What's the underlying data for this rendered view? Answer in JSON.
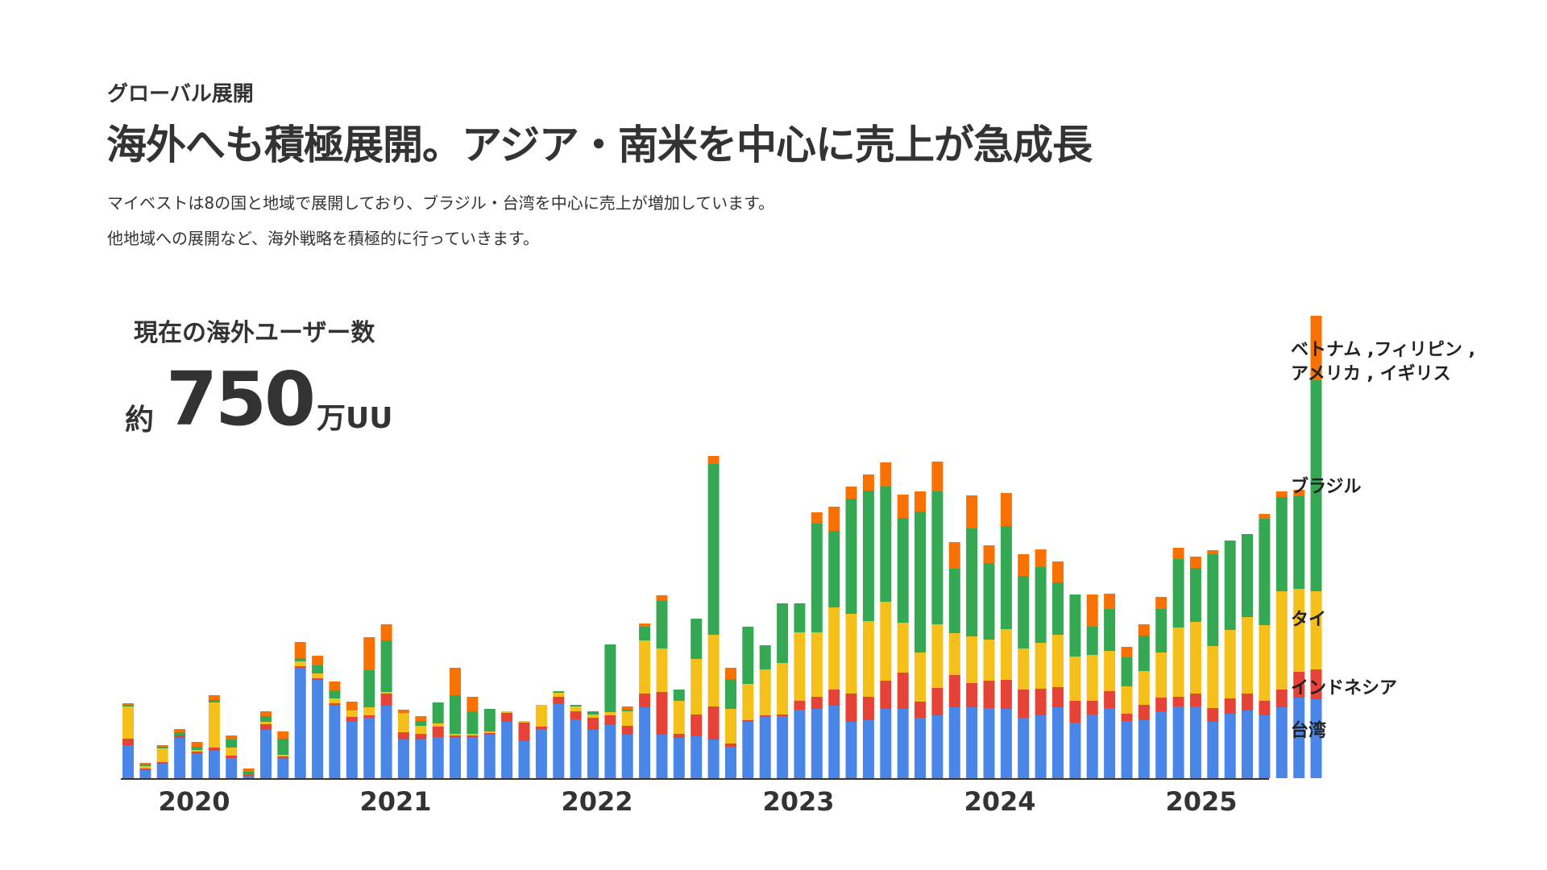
{
  "header": {
    "kicker": "グローバル展開",
    "title": "海外へも積極展開。アジア・南米を中心に売上が急成長",
    "desc_line1": "マイベストは8の国と地域で展開しており、ブラジル・台湾を中心に売上が増加しています。",
    "desc_line2": "他地域への展開など、海外戦略を積極的に行っていきます。"
  },
  "kpi": {
    "label": "現在の海外ユーザー数",
    "prefix": "約",
    "value": "750",
    "unit": "万UU"
  },
  "colors": {
    "台湾": "#4a86e8",
    "インドネシア": "#e64236",
    "タイ": "#f6c01a",
    "ブラジル": "#34a853",
    "other": "#fa7103",
    "axis": "#333333"
  },
  "chart_data": {
    "type": "bar",
    "stacked": true,
    "xlabel": "",
    "ylabel": "",
    "year_labels": [
      "2020",
      "2021",
      "2022",
      "2023",
      "2024",
      "2025"
    ],
    "series": [
      {
        "name": "台湾",
        "values": [
          41,
          10,
          18,
          50,
          31,
          34,
          25,
          3,
          60,
          25,
          137,
          122,
          91,
          70,
          75,
          90,
          48,
          48,
          51,
          51,
          51,
          54,
          70,
          46,
          61,
          92,
          73,
          60,
          66,
          54,
          88,
          54,
          50,
          52,
          48,
          39,
          70,
          76,
          77,
          85,
          86,
          90,
          70,
          72,
          86,
          86,
          75,
          78,
          88,
          88,
          87,
          86,
          75,
          78,
          88,
          69,
          79,
          87,
          71,
          72,
          83,
          89,
          89,
          70,
          80,
          84,
          78,
          88,
          100,
          98
        ]
      },
      {
        "name": "インドネシア",
        "values": [
          8,
          2,
          2,
          3,
          2,
          4,
          3,
          1,
          7,
          2,
          2,
          2,
          2,
          6,
          3,
          15,
          9,
          7,
          13,
          2,
          2,
          2,
          11,
          23,
          3,
          9,
          10,
          15,
          12,
          11,
          17,
          53,
          5,
          27,
          41,
          4,
          2,
          2,
          2,
          11,
          15,
          20,
          35,
          29,
          35,
          45,
          20,
          34,
          40,
          30,
          34,
          36,
          35,
          33,
          25,
          27,
          17,
          21,
          9,
          19,
          17,
          12,
          16,
          17,
          19,
          21,
          18,
          22,
          32,
          37
        ]
      },
      {
        "name": "タイ",
        "values": [
          40,
          3,
          17,
          0,
          2,
          56,
          10,
          0,
          3,
          2,
          6,
          6,
          6,
          8,
          10,
          2,
          24,
          10,
          4,
          2,
          2,
          2,
          2,
          2,
          27,
          5,
          6,
          4,
          4,
          18,
          66,
          54,
          41,
          69,
          89,
          43,
          45,
          57,
          64,
          85,
          80,
          102,
          99,
          94,
          98,
          62,
          61,
          79,
          52,
          58,
          51,
          63,
          51,
          57,
          65,
          55,
          57,
          50,
          34,
          42,
          56,
          86,
          89,
          77,
          85,
          95,
          94,
          122,
          103,
          97
        ]
      },
      {
        "name": "ブラジル",
        "values": [
          2,
          2,
          2,
          4,
          4,
          3,
          10,
          4,
          7,
          20,
          4,
          10,
          10,
          0,
          46,
          64,
          0,
          6,
          26,
          48,
          28,
          28,
          0,
          0,
          0,
          2,
          2,
          4,
          84,
          2,
          17,
          59,
          14,
          50,
          212,
          37,
          71,
          30,
          74,
          36,
          135,
          95,
          143,
          162,
          143,
          130,
          175,
          165,
          80,
          134,
          95,
          128,
          90,
          94,
          65,
          77,
          35,
          52,
          36,
          44,
          54,
          85,
          67,
          114,
          111,
          103,
          132,
          117,
          115,
          262
        ]
      },
      {
        "name": "ベトナム, フィリピン, アメリカ, イギリス",
        "values": [
          2,
          2,
          2,
          4,
          6,
          6,
          5,
          4,
          6,
          9,
          20,
          12,
          11,
          11,
          41,
          20,
          4,
          6,
          0,
          34,
          18,
          0,
          0,
          0,
          0,
          0,
          0,
          0,
          0,
          4,
          4,
          7,
          0,
          0,
          10,
          14,
          0,
          0,
          0,
          0,
          14,
          30,
          15,
          20,
          30,
          29,
          25,
          37,
          33,
          41,
          22,
          41,
          27,
          22,
          26,
          0,
          40,
          19,
          13,
          14,
          15,
          14,
          14,
          5,
          0,
          0,
          6,
          7,
          8,
          80
        ]
      }
    ],
    "legend": [
      "ベトナム ,フィリピン ,\nアメリカ , イギリス",
      "ブラジル",
      "タイ",
      "インドネシア",
      "台湾"
    ],
    "legend_placement": "right"
  }
}
